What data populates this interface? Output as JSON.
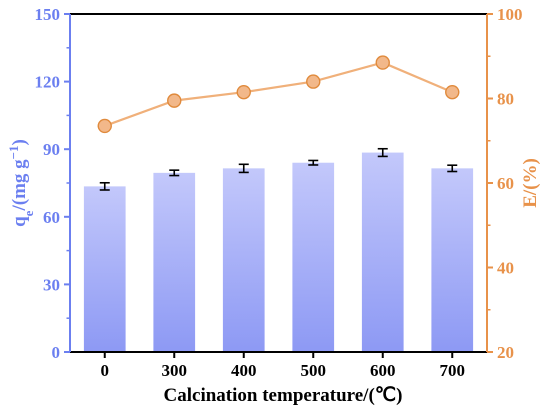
{
  "chart_data": {
    "type": "bar",
    "categories": [
      "0",
      "300",
      "400",
      "500",
      "600",
      "700"
    ],
    "xlabel": "Calcination temperature/(℃)",
    "ylabel_left": {
      "main": "q",
      "sub": "e",
      "rest": "/(mg g",
      "sup": "−1",
      "close": ")"
    },
    "ylabel_right": "E/(%)",
    "ylim_left": [
      0,
      150
    ],
    "yticks_left": [
      "0",
      "30",
      "60",
      "90",
      "120",
      "150"
    ],
    "ylim_right": [
      20,
      100
    ],
    "yticks_right": [
      "20",
      "40",
      "60",
      "80",
      "100"
    ],
    "series": [
      {
        "kind": "bar",
        "axis": "left",
        "values": [
          73.5,
          79.5,
          81.5,
          84.0,
          88.5,
          81.5
        ],
        "errors": [
          1.6,
          1.2,
          1.8,
          1.0,
          1.7,
          1.4
        ]
      },
      {
        "kind": "line",
        "axis": "right",
        "values": [
          73.5,
          79.5,
          81.5,
          84.0,
          88.5,
          81.5
        ],
        "errors": [
          1.1,
          1.0,
          1.1,
          0.9,
          1.1,
          1.0
        ]
      }
    ],
    "colors": {
      "left_axis": "#6b7ff0",
      "right_axis": "#e8924a",
      "bar_top": "#c3c8fb",
      "bar_bottom": "#8d99f4",
      "line": "#f0b07a",
      "marker_fill": "#f2b88a",
      "marker_edge": "#e08a3c"
    },
    "grid": false,
    "legend": "none"
  }
}
